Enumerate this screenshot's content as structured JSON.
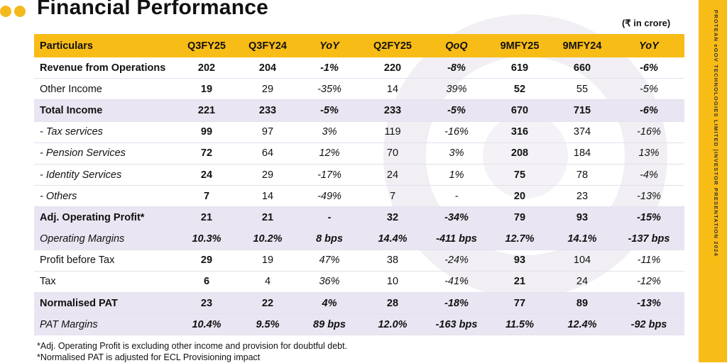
{
  "title": "Financial Performance",
  "unit_note": "(₹  in crore)",
  "sidebar_text": "PROTEAN eGOV TECHNOLOGIES LIMITED  |INVESTOR PRESENTATION  2024",
  "colors": {
    "accent": "#f8bc16",
    "row_shade": "#e9e5f2"
  },
  "table": {
    "headers": [
      "Particulars",
      "Q3FY25",
      "Q3FY24",
      "YoY",
      "Q2FY25",
      "QoQ",
      "9MFY25",
      "9MFY24",
      "YoY"
    ],
    "rows": [
      [
        "Revenue from Operations",
        "202",
        "204",
        "-1%",
        "220",
        "-8%",
        "619",
        "660",
        "-6%"
      ],
      [
        "Other Income",
        "19",
        "29",
        "-35%",
        "14",
        "39%",
        "52",
        "55",
        "-5%"
      ],
      [
        "Total Income",
        "221",
        "233",
        "-5%",
        "233",
        "-5%",
        "670",
        "715",
        "-6%"
      ],
      [
        "- Tax services",
        "99",
        "97",
        "3%",
        "119",
        "-16%",
        "316",
        "374",
        "-16%"
      ],
      [
        "- Pension Services",
        "72",
        "64",
        "12%",
        "70",
        "3%",
        "208",
        "184",
        "13%"
      ],
      [
        "- Identity Services",
        "24",
        "29",
        "-17%",
        "24",
        "1%",
        "75",
        "78",
        "-4%"
      ],
      [
        "- Others",
        "7",
        "14",
        "-49%",
        "7",
        "-",
        "20",
        "23",
        "-13%"
      ],
      [
        "Adj. Operating Profit*",
        "21",
        "21",
        "-",
        "32",
        "-34%",
        "79",
        "93",
        "-15%"
      ],
      [
        "Operating Margins",
        "10.3%",
        "10.2%",
        "8 bps",
        "14.4%",
        "-411 bps",
        "12.7%",
        "14.1%",
        "-137 bps"
      ],
      [
        "Profit before Tax",
        "29",
        "19",
        "47%",
        "38",
        "-24%",
        "93",
        "104",
        "-11%"
      ],
      [
        "Tax",
        "6",
        "4",
        "36%",
        "10",
        "-41%",
        "21",
        "24",
        "-12%"
      ],
      [
        "Normalised PAT",
        "23",
        "22",
        "4%",
        "28",
        "-18%",
        "77",
        "89",
        "-13%"
      ],
      [
        "PAT Margins",
        "10.4%",
        "9.5%",
        "89 bps",
        "12.0%",
        "-163 bps",
        "11.5%",
        "12.4%",
        "-92 bps"
      ]
    ]
  },
  "footnotes": [
    "*Adj. Operating Profit is excluding other income and provision for doubtful debt.",
    "*Normalised PAT is adjusted for ECL Provisioning impact"
  ]
}
